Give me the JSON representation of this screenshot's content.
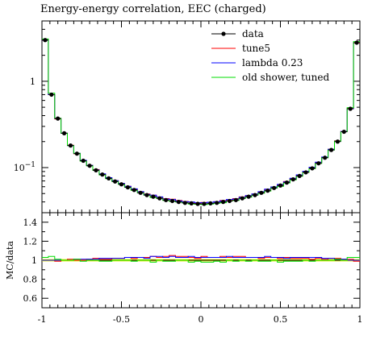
{
  "title": "Energy-energy correlation, EEC (charged)",
  "main_ylabels": [
    "1",
    "10<sup>-1</sup>"
  ],
  "ratio_ylabel": "MC/data",
  "chart_data": {
    "type": "line",
    "title": "Energy-energy correlation, EEC (charged)",
    "x_range": [
      -1,
      1
    ],
    "y_scale": "log",
    "y_range": [
      0.03,
      5
    ],
    "y_ticks": [
      1,
      0.1
    ],
    "x_ticks": [
      -1,
      -0.5,
      0,
      0.5,
      1
    ],
    "x_tick_labels": [
      "-1",
      "-0.5",
      "0",
      "0.5",
      "1"
    ],
    "bin_edges": [
      -1.0,
      -0.96,
      -0.92,
      -0.88,
      -0.84,
      -0.8,
      -0.76,
      -0.72,
      -0.68,
      -0.64,
      -0.6,
      -0.56,
      -0.52,
      -0.48,
      -0.44,
      -0.4,
      -0.36,
      -0.32,
      -0.28,
      -0.24,
      -0.2,
      -0.16,
      -0.12,
      -0.08,
      -0.04,
      0.0,
      0.04,
      0.08,
      0.12,
      0.16,
      0.2,
      0.24,
      0.28,
      0.32,
      0.36,
      0.4,
      0.44,
      0.48,
      0.52,
      0.56,
      0.6,
      0.64,
      0.68,
      0.72,
      0.76,
      0.8,
      0.84,
      0.88,
      0.92,
      0.96,
      1.0
    ],
    "data": [
      3.0,
      0.7,
      0.37,
      0.25,
      0.18,
      0.145,
      0.12,
      0.105,
      0.093,
      0.083,
      0.075,
      0.069,
      0.064,
      0.059,
      0.055,
      0.051,
      0.048,
      0.046,
      0.044,
      0.042,
      0.041,
      0.04,
      0.039,
      0.0385,
      0.038,
      0.038,
      0.0385,
      0.039,
      0.04,
      0.041,
      0.042,
      0.044,
      0.046,
      0.048,
      0.051,
      0.054,
      0.058,
      0.062,
      0.067,
      0.073,
      0.08,
      0.088,
      0.098,
      0.112,
      0.13,
      0.16,
      0.2,
      0.26,
      0.48,
      2.8
    ],
    "series": [
      {
        "name": "data",
        "color": "#000000",
        "ratio": null
      },
      {
        "name": "tune5",
        "color": "#ff0000",
        "ratio": [
          1.0,
          1.0,
          0.99,
          1.0,
          1.01,
          1.0,
          1.0,
          1.01,
          1.02,
          1.01,
          1.01,
          1.02,
          1.02,
          1.03,
          1.02,
          1.03,
          1.03,
          1.04,
          1.03,
          1.04,
          1.05,
          1.04,
          1.04,
          1.03,
          1.02,
          1.04,
          1.03,
          1.03,
          1.04,
          1.03,
          1.04,
          1.04,
          1.03,
          1.03,
          1.02,
          1.03,
          1.03,
          1.02,
          1.03,
          1.02,
          1.02,
          1.02,
          1.01,
          1.02,
          1.01,
          1.02,
          1.02,
          1.01,
          1.01,
          0.99
        ]
      },
      {
        "name": "lambda 0.23",
        "color": "#0000ff",
        "ratio": [
          1.0,
          1.0,
          1.0,
          1.0,
          1.0,
          1.01,
          1.01,
          1.01,
          1.01,
          1.02,
          1.02,
          1.02,
          1.02,
          1.03,
          1.03,
          1.03,
          1.02,
          1.04,
          1.04,
          1.03,
          1.04,
          1.03,
          1.03,
          1.04,
          1.03,
          1.03,
          1.03,
          1.03,
          1.03,
          1.04,
          1.03,
          1.03,
          1.03,
          1.03,
          1.03,
          1.04,
          1.03,
          1.03,
          1.02,
          1.03,
          1.03,
          1.03,
          1.03,
          1.03,
          1.02,
          1.02,
          1.01,
          1.01,
          1.0,
          1.0
        ]
      },
      {
        "name": "old shower, tuned",
        "color": "#00dd00",
        "ratio": [
          1.03,
          1.04,
          1.01,
          1.0,
          1.0,
          1.01,
          0.99,
          1.0,
          1.0,
          0.99,
          0.99,
          1.0,
          1.0,
          1.0,
          0.99,
          1.0,
          1.0,
          0.98,
          1.0,
          0.99,
          0.99,
          1.0,
          1.0,
          0.98,
          0.99,
          0.98,
          0.98,
          0.99,
          0.98,
          1.0,
          0.99,
          1.0,
          0.99,
          1.0,
          0.99,
          0.99,
          1.0,
          0.98,
          0.99,
          0.99,
          0.99,
          1.0,
          0.99,
          1.0,
          1.0,
          1.0,
          1.01,
          1.0,
          1.03,
          1.03
        ]
      }
    ],
    "ratio_ticks": [
      1.4,
      1.2,
      1,
      0.8,
      0.6
    ],
    "ratio_tick_labels": [
      "1.4",
      "1.2",
      "1",
      "0.8",
      "0.6"
    ],
    "ratio_range": [
      0.5,
      1.5
    ],
    "ratio_band_color": "#e6e600",
    "legend_position": "top-right"
  }
}
